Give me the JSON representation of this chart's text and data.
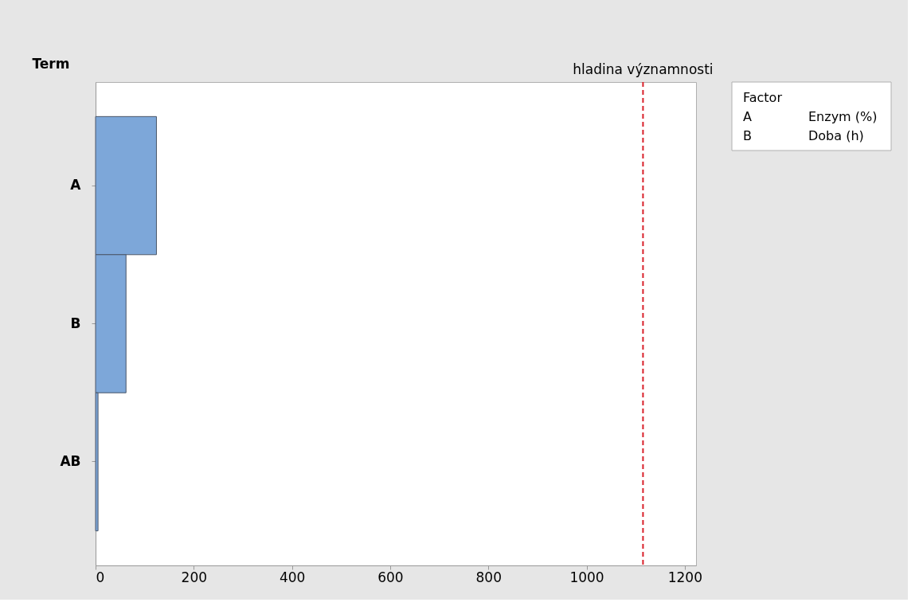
{
  "chart_data": {
    "type": "bar",
    "orientation": "horizontal",
    "ylabel": "Term",
    "categories": [
      "A",
      "B",
      "AB"
    ],
    "values": [
      124,
      62,
      5
    ],
    "color": "#7da7d9",
    "xlim": [
      0,
      1223
    ],
    "xticks": [
      0,
      200,
      400,
      600,
      800,
      1000,
      1200
    ],
    "ref_lines": [
      {
        "axis": "x",
        "value": 1115,
        "label": "hladina významnosti",
        "color": "#d9202a",
        "line_style": "dashed"
      }
    ],
    "annotations": [
      "Factor",
      "A",
      "Enzym (%)",
      "B",
      "Doba (h)"
    ],
    "grid": false
  }
}
